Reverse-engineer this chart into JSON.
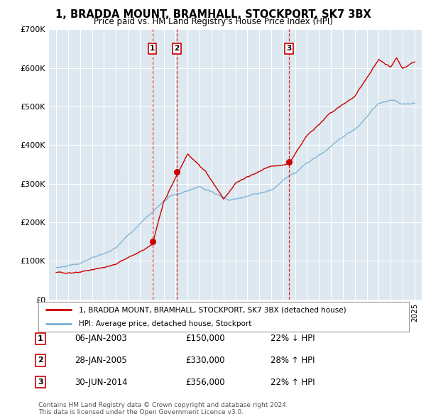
{
  "title": "1, BRADDA MOUNT, BRAMHALL, STOCKPORT, SK7 3BX",
  "subtitle": "Price paid vs. HM Land Registry's House Price Index (HPI)",
  "background_color": "#ffffff",
  "plot_bg_color": "#dde8f0",
  "grid_color": "#ffffff",
  "ylim": [
    0,
    700000
  ],
  "yticks": [
    0,
    100000,
    200000,
    300000,
    400000,
    500000,
    600000,
    700000
  ],
  "ytick_labels": [
    "£0",
    "£100K",
    "£200K",
    "£300K",
    "£400K",
    "£500K",
    "£600K",
    "£700K"
  ],
  "sale_dates_year": [
    2003.05,
    2005.08,
    2014.5
  ],
  "sale_prices": [
    150000,
    330000,
    356000
  ],
  "sale_labels": [
    "1",
    "2",
    "3"
  ],
  "sale_dates_str": [
    "06-JAN-2003",
    "28-JAN-2005",
    "30-JUN-2014"
  ],
  "sale_pct": [
    "22% ↓ HPI",
    "28% ↑ HPI",
    "22% ↑ HPI"
  ],
  "legend_property": "1, BRADDA MOUNT, BRAMHALL, STOCKPORT, SK7 3BX (detached house)",
  "legend_hpi": "HPI: Average price, detached house, Stockport",
  "property_color": "#cc0000",
  "hpi_color": "#7ab0d4",
  "vline_color": "#cc0000",
  "footnote1": "Contains HM Land Registry data © Crown copyright and database right 2024.",
  "footnote2": "This data is licensed under the Open Government Licence v3.0."
}
